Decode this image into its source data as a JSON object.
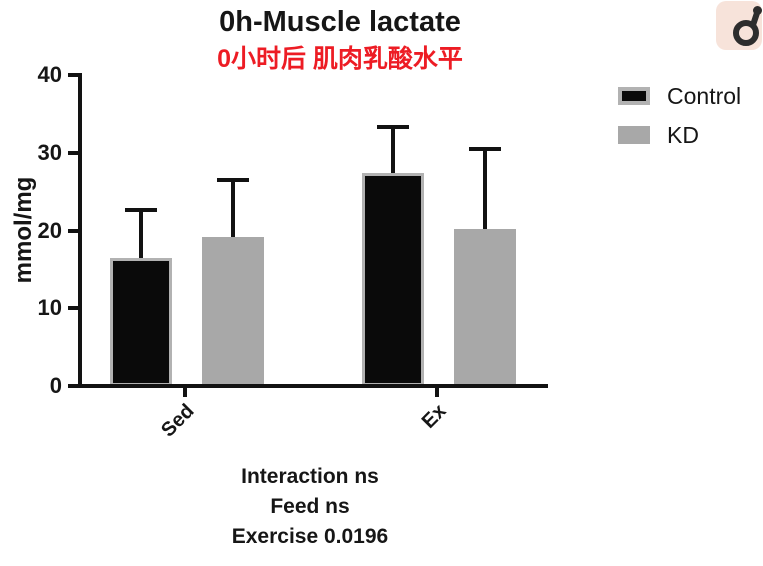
{
  "figure": {
    "watermark": {
      "icon": "male-symbol-icon",
      "bg_color": "#f7e3da",
      "glyph_color": "#2d2d2d"
    }
  },
  "chart_data": {
    "type": "bar",
    "title": "0h-Muscle lactate",
    "subtitle": "0小时后 肌肉乳酸水平",
    "subtitle_color": "#ed1c24",
    "xlabel": "",
    "ylabel": "mmol/mg",
    "ylim": [
      0,
      40
    ],
    "yticks": [
      0,
      10,
      20,
      30,
      40
    ],
    "categories": [
      "Sed",
      "Ex"
    ],
    "series": [
      {
        "name": "Control",
        "color": "#0a0a0a",
        "border_color": "#b2b2b2",
        "values": [
          16.5,
          27.4
        ],
        "error_up": [
          6.2,
          5.9
        ]
      },
      {
        "name": "KD",
        "color": "#a8a8a8",
        "values": [
          19.2,
          20.2
        ],
        "error_up": [
          7.3,
          10.3
        ]
      }
    ],
    "grid": false,
    "legend_position": "top-right",
    "annotations": [
      "Interaction ns",
      "Feed ns",
      "Exercise 0.0196"
    ]
  }
}
